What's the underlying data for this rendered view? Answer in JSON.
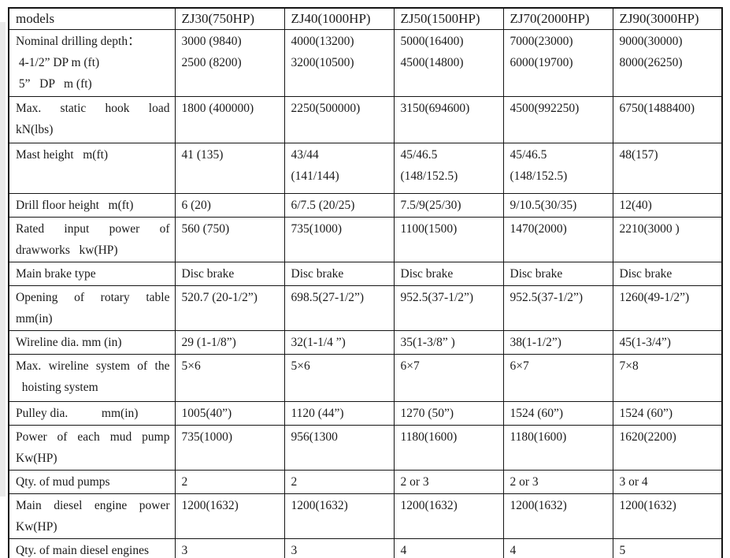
{
  "table": {
    "columns": [
      "models",
      "ZJ30(750HP)",
      "ZJ40(1000HP)",
      "ZJ50(1500HP)",
      "ZJ70(2000HP)",
      "ZJ90(3000HP)"
    ],
    "rows": [
      {
        "label_lines": [
          {
            "t": "Nominal drilling depth：",
            "j": false
          },
          {
            "t": " 4-1/2” DP m (ft)",
            "j": false
          },
          {
            "t": " 5”   DP   m (ft)",
            "j": false
          }
        ],
        "values": [
          [
            "3000 (9840)",
            "2500 (8200)"
          ],
          [
            "4000(13200)",
            "3200(10500)"
          ],
          [
            "5000(16400)",
            "4500(14800)"
          ],
          [
            "7000(23000)",
            "6000(19700)"
          ],
          [
            "9000(30000)",
            "8000(26250)"
          ]
        ]
      },
      {
        "label_lines": [
          {
            "t": "Max. static hook load",
            "j": true
          },
          {
            "t": "kN(lbs)",
            "j": false
          }
        ],
        "values": [
          [
            "1800 (400000)"
          ],
          [
            "2250(500000)"
          ],
          [
            "3150(694600)"
          ],
          [
            "4500(992250)"
          ],
          [
            "6750(1488400)"
          ]
        ]
      },
      {
        "label_lines": [
          {
            "t": "Mast height   m(ft)",
            "j": false
          }
        ],
        "values": [
          [
            "41 (135)"
          ],
          [
            "43/44",
            "(141/144)"
          ],
          [
            "45/46.5",
            "(148/152.5)"
          ],
          [
            "45/46.5",
            "(148/152.5)"
          ],
          [
            "48(157)"
          ]
        ]
      },
      {
        "label_lines": [
          {
            "t": "Drill floor height   m(ft)",
            "j": false
          }
        ],
        "values": [
          [
            "6 (20)"
          ],
          [
            "6/7.5 (20/25)"
          ],
          [
            "7.5/9(25/30)"
          ],
          [
            "9/10.5(30/35)"
          ],
          [
            "12(40)"
          ]
        ]
      },
      {
        "label_lines": [
          {
            "t": "Rated input power of",
            "j": true
          },
          {
            "t": "drawworks   kw(HP)",
            "j": false
          }
        ],
        "values": [
          [
            "560 (750)"
          ],
          [
            "735(1000)"
          ],
          [
            "1100(1500)"
          ],
          [
            "1470(2000)"
          ],
          [
            "2210(3000 )"
          ]
        ]
      },
      {
        "label_lines": [
          {
            "t": "Main brake type",
            "j": false
          }
        ],
        "values": [
          [
            "Disc brake"
          ],
          [
            "Disc brake"
          ],
          [
            "Disc brake"
          ],
          [
            "Disc brake"
          ],
          [
            "Disc brake"
          ]
        ]
      },
      {
        "label_lines": [
          {
            "t": "Opening of rotary table",
            "j": true
          },
          {
            "t": "mm(in)",
            "j": false
          }
        ],
        "values": [
          [
            "520.7 (20-1/2”)"
          ],
          [
            "698.5(27-1/2”)"
          ],
          [
            "952.5(37-1/2”)"
          ],
          [
            "952.5(37-1/2”)"
          ],
          [
            "1260(49-1/2”)"
          ]
        ]
      },
      {
        "label_lines": [
          {
            "t": "Wireline dia. mm (in)",
            "j": false
          }
        ],
        "values": [
          [
            "29 (1-1/8”)"
          ],
          [
            "32(1-1/4 ”)"
          ],
          [
            "35(1-3/8” )"
          ],
          [
            "38(1-1/2”)"
          ],
          [
            "45(1-3/4”)"
          ]
        ]
      },
      {
        "label_lines": [
          {
            "t": "Max. wireline system of the",
            "j": true
          },
          {
            "t": "  hoisting system",
            "j": false
          }
        ],
        "values": [
          [
            "5×6"
          ],
          [
            "5×6"
          ],
          [
            "6×7"
          ],
          [
            "6×7"
          ],
          [
            "7×8"
          ]
        ]
      },
      {
        "label_lines": [
          {
            "t": "Pulley dia.           mm(in)",
            "j": false
          }
        ],
        "values": [
          [
            "1005(40”)"
          ],
          [
            "1120 (44”)"
          ],
          [
            "1270 (50”)"
          ],
          [
            "1524 (60”)"
          ],
          [
            "1524 (60”)"
          ]
        ]
      },
      {
        "label_lines": [
          {
            "t": "Power of each mud pump",
            "j": true
          },
          {
            "t": "Kw(HP)",
            "j": false
          }
        ],
        "values": [
          [
            "735(1000)"
          ],
          [
            "956(1300"
          ],
          [
            "1180(1600)"
          ],
          [
            "1180(1600)"
          ],
          [
            "1620(2200)"
          ]
        ]
      },
      {
        "label_lines": [
          {
            "t": "Qty. of mud pumps",
            "j": false
          }
        ],
        "values": [
          [
            "2"
          ],
          [
            "2"
          ],
          [
            "2 or 3"
          ],
          [
            "2 or 3"
          ],
          [
            "3 or 4"
          ]
        ]
      },
      {
        "label_lines": [
          {
            "t": "Main diesel engine power",
            "j": true
          },
          {
            "t": "Kw(HP)",
            "j": false
          }
        ],
        "values": [
          [
            "1200(1632)"
          ],
          [
            "1200(1632)"
          ],
          [
            "1200(1632)"
          ],
          [
            "1200(1632)"
          ],
          [
            "1200(1632)"
          ]
        ]
      },
      {
        "label_lines": [
          {
            "t": "Qty. of main diesel engines",
            "j": false
          }
        ],
        "values": [
          [
            "3"
          ],
          [
            "3"
          ],
          [
            "4"
          ],
          [
            "4"
          ],
          [
            "5"
          ]
        ]
      }
    ]
  }
}
